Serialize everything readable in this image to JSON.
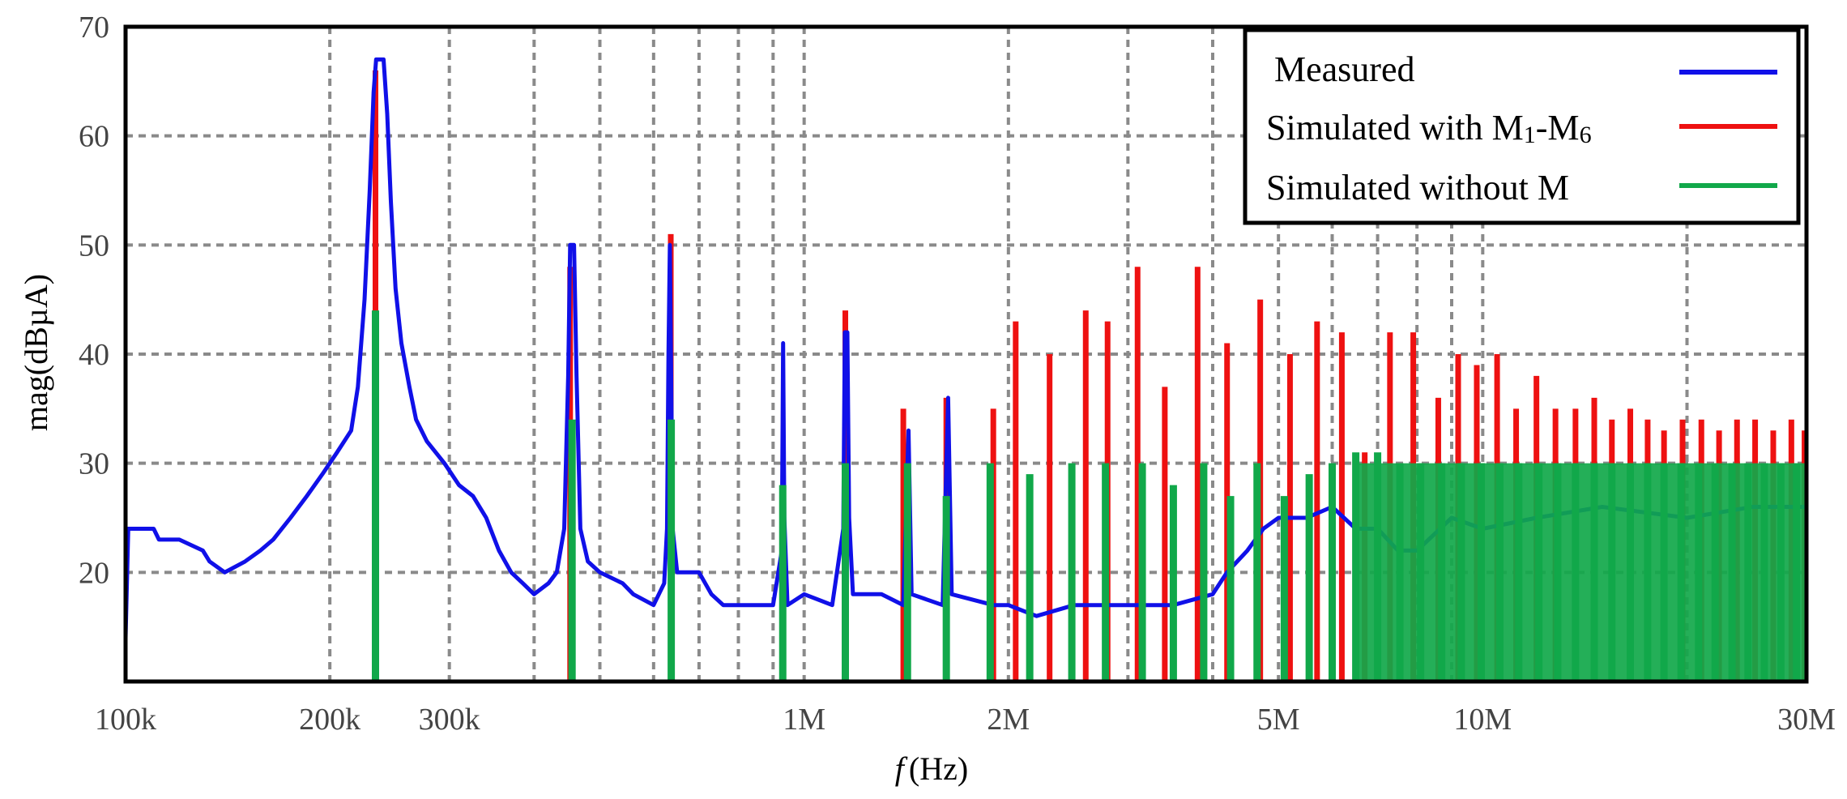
{
  "chart_data": {
    "type": "line",
    "xlabel_italic": "f",
    "xlabel_unit": "(Hz)",
    "ylabel": "mag(dBµA)",
    "x_scale": "log",
    "xlim": [
      100000,
      30000000
    ],
    "ylim": [
      10,
      70
    ],
    "grid": true,
    "legend_position": "top-right",
    "y_ticks": [
      20,
      30,
      40,
      50,
      60,
      70
    ],
    "y_tick_labels": [
      "20",
      "30",
      "40",
      "50",
      "60",
      "70"
    ],
    "x_tick_labels": [
      {
        "value": 100000,
        "label": "100k"
      },
      {
        "value": 200000,
        "label": "200k"
      },
      {
        "value": 300000,
        "label": "300k"
      },
      {
        "value": 1000000,
        "label": "1M"
      },
      {
        "value": 2000000,
        "label": "2M"
      },
      {
        "value": 5000000,
        "label": "5M"
      },
      {
        "value": 10000000,
        "label": "10M"
      },
      {
        "value": 30000000,
        "label": "30M"
      }
    ],
    "x_gridlines": [
      200000,
      300000,
      400000,
      500000,
      600000,
      700000,
      800000,
      900000,
      1000000,
      2000000,
      3000000,
      4000000,
      5000000,
      6000000,
      7000000,
      8000000,
      9000000,
      10000000,
      20000000,
      30000000
    ],
    "series": [
      {
        "name": "Measured",
        "name_text": "Measured",
        "color": "#1010e8",
        "points": [
          [
            100000,
            14
          ],
          [
            100900,
            24
          ],
          [
            110000,
            24
          ],
          [
            112000,
            23
          ],
          [
            120000,
            23
          ],
          [
            130000,
            22
          ],
          [
            133000,
            21
          ],
          [
            140000,
            20
          ],
          [
            150000,
            21
          ],
          [
            158000,
            22
          ],
          [
            165000,
            23
          ],
          [
            175000,
            25
          ],
          [
            185000,
            27
          ],
          [
            195000,
            29
          ],
          [
            205000,
            31
          ],
          [
            215000,
            33
          ],
          [
            220000,
            37
          ],
          [
            225000,
            45
          ],
          [
            229000,
            55
          ],
          [
            232000,
            64
          ],
          [
            234000,
            67
          ],
          [
            240000,
            67
          ],
          [
            243000,
            62
          ],
          [
            246000,
            54
          ],
          [
            250000,
            46
          ],
          [
            255000,
            41
          ],
          [
            262000,
            37
          ],
          [
            268000,
            34
          ],
          [
            278000,
            32
          ],
          [
            295000,
            30
          ],
          [
            310000,
            28
          ],
          [
            325000,
            27
          ],
          [
            340000,
            25
          ],
          [
            355000,
            22
          ],
          [
            370000,
            20
          ],
          [
            385000,
            19
          ],
          [
            400000,
            18
          ],
          [
            420000,
            19
          ],
          [
            432000,
            20
          ],
          [
            443000,
            24
          ],
          [
            449000,
            38
          ],
          [
            452000,
            50
          ],
          [
            458000,
            50
          ],
          [
            462000,
            38
          ],
          [
            468000,
            24
          ],
          [
            480000,
            21
          ],
          [
            500000,
            20
          ],
          [
            540000,
            19
          ],
          [
            560000,
            18
          ],
          [
            600000,
            17
          ],
          [
            622000,
            19
          ],
          [
            628000,
            24
          ],
          [
            631000,
            40
          ],
          [
            634000,
            50
          ],
          [
            636000,
            42
          ],
          [
            640000,
            24
          ],
          [
            650000,
            20
          ],
          [
            700000,
            20
          ],
          [
            730000,
            18
          ],
          [
            760000,
            17
          ],
          [
            800000,
            17
          ],
          [
            850000,
            17
          ],
          [
            900000,
            17
          ],
          [
            927000,
            22
          ],
          [
            931000,
            41
          ],
          [
            935000,
            25
          ],
          [
            945000,
            17
          ],
          [
            1000000,
            18
          ],
          [
            1100000,
            17
          ],
          [
            1142000,
            24
          ],
          [
            1148000,
            42
          ],
          [
            1158000,
            42
          ],
          [
            1165000,
            25
          ],
          [
            1180000,
            18
          ],
          [
            1300000,
            18
          ],
          [
            1400000,
            17
          ],
          [
            1425000,
            33
          ],
          [
            1440000,
            18
          ],
          [
            1600000,
            17
          ],
          [
            1630000,
            36
          ],
          [
            1650000,
            18
          ],
          [
            1900000,
            17
          ],
          [
            2000000,
            17
          ],
          [
            2200000,
            16
          ],
          [
            2500000,
            17
          ],
          [
            3000000,
            17
          ],
          [
            3500000,
            17
          ],
          [
            4000000,
            18
          ],
          [
            4200000,
            20
          ],
          [
            4500000,
            22
          ],
          [
            4750000,
            24
          ],
          [
            5000000,
            25
          ],
          [
            5500000,
            25
          ],
          [
            6000000,
            26
          ],
          [
            6500000,
            24
          ],
          [
            7000000,
            24
          ],
          [
            7500000,
            22
          ],
          [
            8000000,
            22
          ],
          [
            9000000,
            25
          ],
          [
            10000000,
            24
          ],
          [
            12000000,
            25
          ],
          [
            15000000,
            26
          ],
          [
            20000000,
            25
          ],
          [
            25000000,
            26
          ],
          [
            30000000,
            26
          ]
        ]
      },
      {
        "name": "Simulated with M1-M6",
        "name_text": "Simulated with M",
        "name_sub1": "1",
        "name_mid": "-M",
        "name_sub2": "6",
        "color": "#ee1111",
        "spikes": [
          [
            233500,
            66
          ],
          [
            452000,
            48
          ],
          [
            636000,
            51
          ],
          [
            1150000,
            44
          ],
          [
            1400000,
            35
          ],
          [
            1620000,
            36
          ],
          [
            1900000,
            35
          ],
          [
            2050000,
            43
          ],
          [
            2300000,
            40
          ],
          [
            2600000,
            44
          ],
          [
            2800000,
            43
          ],
          [
            3100000,
            48
          ],
          [
            3400000,
            37
          ],
          [
            3800000,
            48
          ],
          [
            4200000,
            41
          ],
          [
            4700000,
            45
          ],
          [
            5200000,
            40
          ],
          [
            5700000,
            43
          ],
          [
            6200000,
            42
          ],
          [
            6700000,
            31
          ],
          [
            7300000,
            42
          ],
          [
            7900000,
            42
          ],
          [
            8600000,
            36
          ],
          [
            9200000,
            40
          ],
          [
            9800000,
            39
          ],
          [
            10500000,
            40
          ],
          [
            11200000,
            35
          ],
          [
            12000000,
            38
          ],
          [
            12800000,
            35
          ],
          [
            13700000,
            35
          ],
          [
            14600000,
            36
          ],
          [
            15500000,
            34
          ],
          [
            16500000,
            35
          ],
          [
            17500000,
            34
          ],
          [
            18500000,
            33
          ],
          [
            19700000,
            34
          ],
          [
            21000000,
            34
          ],
          [
            22300000,
            33
          ],
          [
            23700000,
            34
          ],
          [
            25200000,
            34
          ],
          [
            26800000,
            33
          ],
          [
            28500000,
            34
          ],
          [
            29800000,
            33
          ]
        ]
      },
      {
        "name": "Simulated without M",
        "name_text": "Simulated without M",
        "color": "#11a84a",
        "spikes": [
          [
            233500,
            44
          ],
          [
            455000,
            34
          ],
          [
            637000,
            34
          ],
          [
            930000,
            28
          ],
          [
            1150000,
            30
          ],
          [
            1420000,
            30
          ],
          [
            1620000,
            27
          ],
          [
            1880000,
            30
          ],
          [
            2150000,
            29
          ],
          [
            2480000,
            30
          ],
          [
            2780000,
            30
          ],
          [
            3150000,
            30
          ],
          [
            3500000,
            28
          ],
          [
            3880000,
            30
          ],
          [
            4250000,
            27
          ],
          [
            4650000,
            30
          ],
          [
            5100000,
            27
          ],
          [
            5550000,
            29
          ],
          [
            6000000,
            30
          ],
          [
            6500000,
            31
          ],
          [
            7000000,
            31
          ],
          [
            7550000,
            30
          ],
          [
            8100000,
            30
          ],
          [
            8700000,
            30
          ],
          [
            9300000,
            30
          ],
          [
            9950000,
            30
          ],
          [
            10600000,
            30
          ],
          [
            11300000,
            30
          ],
          [
            12100000,
            30
          ],
          [
            12900000,
            30
          ],
          [
            13700000,
            30
          ],
          [
            14600000,
            30
          ],
          [
            15500000,
            30
          ],
          [
            16500000,
            30
          ],
          [
            17500000,
            30
          ],
          [
            18500000,
            30
          ],
          [
            19600000,
            30
          ],
          [
            20800000,
            30
          ],
          [
            22000000,
            30
          ],
          [
            23300000,
            30
          ],
          [
            24600000,
            30
          ],
          [
            26000000,
            30
          ],
          [
            27500000,
            30
          ],
          [
            29000000,
            30
          ]
        ],
        "fill_band": {
          "from_x": 6500000,
          "to_x": 30000000,
          "y_top": 30
        }
      }
    ]
  }
}
